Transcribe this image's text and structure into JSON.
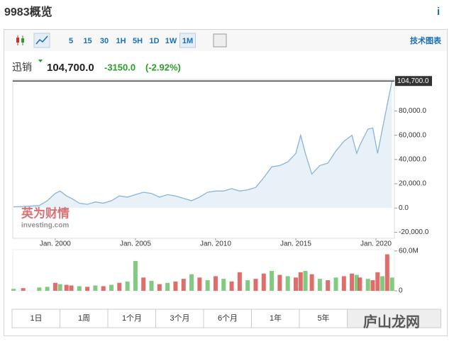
{
  "header": {
    "title": "9983概览",
    "info": "i"
  },
  "toolbar": {
    "intervals": [
      "5",
      "15",
      "30",
      "1H",
      "5H",
      "1D",
      "1W",
      "1M"
    ],
    "selected": 7,
    "tech_link": "技术图表"
  },
  "quote": {
    "name": "迅销",
    "price": "104,700.0",
    "change": "-3150.0",
    "change_pct": "(-2.92%)"
  },
  "chart_data": {
    "type": "line",
    "x": [
      1997.4,
      1998,
      1999,
      1999.5,
      2000,
      2000.3,
      2000.7,
      2001,
      2001.5,
      2002,
      2002.5,
      2003,
      2003.5,
      2004,
      2004.5,
      2005,
      2005.5,
      2006,
      2006.5,
      2007,
      2007.5,
      2008,
      2008.5,
      2009,
      2009.5,
      2010,
      2010.5,
      2011,
      2011.5,
      2012,
      2012.5,
      2013,
      2013.5,
      2014,
      2014.5,
      2015,
      2015.3,
      2015.6,
      2016,
      2016.5,
      2017,
      2017.5,
      2018,
      2018.5,
      2018.8,
      2019,
      2019.5,
      2019.8,
      2020.1,
      2020.4,
      2020.7,
      2021
    ],
    "series": [
      {
        "name": "迅销",
        "color": "#8ab4d8",
        "values": [
          1000,
          1200,
          2000,
          6000,
          12000,
          14000,
          10000,
          8000,
          4000,
          3000,
          5000,
          4000,
          6000,
          10000,
          9000,
          11000,
          13000,
          12000,
          9000,
          11000,
          10000,
          8000,
          6000,
          9000,
          13000,
          14000,
          14000,
          16000,
          14000,
          15000,
          17000,
          25000,
          34000,
          35000,
          38000,
          45000,
          60000,
          45000,
          28000,
          35000,
          37000,
          47000,
          55000,
          60000,
          45000,
          52000,
          65000,
          66000,
          45000,
          65000,
          85000,
          104700
        ]
      }
    ],
    "current": {
      "value": 104700,
      "label": "104,700.0"
    },
    "xlim": [
      1997.35,
      2021.15
    ],
    "ylim": [
      -25000,
      106000
    ],
    "xticks": [
      {
        "value": 2000,
        "label": "Jan. 2000"
      },
      {
        "value": 2005,
        "label": "Jan. 2005"
      },
      {
        "value": 2010,
        "label": "Jan. 2010"
      },
      {
        "value": 2015,
        "label": "Jan. 2015"
      },
      {
        "value": 2020,
        "label": "Jan. 2020"
      }
    ],
    "yticks": [
      {
        "value": -20000,
        "label": "-20,000.0"
      },
      {
        "value": 0,
        "label": "0.0"
      },
      {
        "value": 20000,
        "label": "20,000.0"
      },
      {
        "value": 40000,
        "label": "40,000.0"
      },
      {
        "value": 60000,
        "label": "60,000.0"
      },
      {
        "value": 80000,
        "label": "80,000.0"
      }
    ],
    "volume": {
      "values": [
        3,
        4,
        5,
        6,
        12,
        10,
        9,
        8,
        7,
        6,
        8,
        7,
        9,
        12,
        14,
        45,
        20,
        15,
        10,
        12,
        14,
        18,
        25,
        20,
        16,
        22,
        18,
        14,
        28,
        16,
        18,
        26,
        30,
        24,
        22,
        20,
        28,
        30,
        25,
        18,
        16,
        20,
        22,
        26,
        24,
        20,
        18,
        16,
        28,
        22,
        55,
        20
      ],
      "colors": [
        "#6cbf6c",
        "#d9534f",
        "#6cbf6c",
        "#6cbf6c",
        "#d9534f",
        "#6cbf6c",
        "#d9534f",
        "#d9534f",
        "#6cbf6c",
        "#d9534f",
        "#6cbf6c",
        "#d9534f",
        "#6cbf6c",
        "#d9534f",
        "#6cbf6c",
        "#6cbf6c",
        "#d9534f",
        "#6cbf6c",
        "#d9534f",
        "#6cbf6c",
        "#d9534f",
        "#d9534f",
        "#6cbf6c",
        "#d9534f",
        "#6cbf6c",
        "#d9534f",
        "#6cbf6c",
        "#d9534f",
        "#d9534f",
        "#6cbf6c",
        "#d9534f",
        "#d9534f",
        "#6cbf6c",
        "#d9534f",
        "#6cbf6c",
        "#d9534f",
        "#d9534f",
        "#6cbf6c",
        "#d9534f",
        "#6cbf6c",
        "#d9534f",
        "#6cbf6c",
        "#d9534f",
        "#d9534f",
        "#6cbf6c",
        "#d9534f",
        "#6cbf6c",
        "#d9534f",
        "#d9534f",
        "#6cbf6c",
        "#d9534f",
        "#6cbf6c"
      ],
      "ylim": [
        0,
        62
      ],
      "yticks": [
        {
          "value": 0,
          "label": "0"
        },
        {
          "value": 60,
          "label": "60.0M"
        }
      ]
    },
    "watermark": [
      "英为财情",
      "investing.com"
    ]
  },
  "ranges": [
    "1日",
    "1周",
    "1个月",
    "3个月",
    "6个月",
    "1年",
    "5年"
  ],
  "site_watermark": "庐山龙网"
}
